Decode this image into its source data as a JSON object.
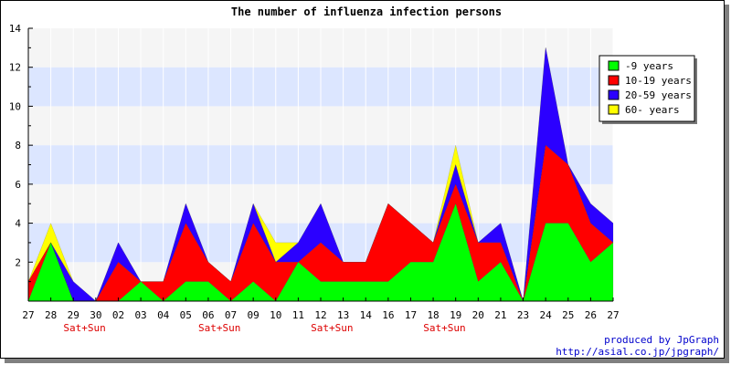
{
  "chart_data": {
    "type": "area",
    "stacked": true,
    "title": "The number of influenza infection persons",
    "xlabel": "",
    "ylabel": "",
    "ylim": [
      0,
      14
    ],
    "yticks": [
      2,
      4,
      6,
      8,
      10,
      12,
      14
    ],
    "categories": [
      "27",
      "28",
      "29",
      "30",
      "02",
      "03",
      "04",
      "05",
      "06",
      "07",
      "09",
      "10",
      "11",
      "12",
      "13",
      "14",
      "16",
      "17",
      "18",
      "19",
      "20",
      "21",
      "23",
      "24",
      "25",
      "26",
      "27"
    ],
    "weekend_labels": [
      {
        "after": "29",
        "label": "Sat+Sun"
      },
      {
        "after": "06",
        "label": "Sat+Sun"
      },
      {
        "after": "12",
        "label": "Sat+Sun"
      },
      {
        "after": "18",
        "label": "Sat+Sun"
      }
    ],
    "legend_position": "top-right",
    "grid": true,
    "series": [
      {
        "name": "-9 years",
        "color": "#00ff00",
        "values": [
          0,
          3,
          0,
          0,
          0,
          1,
          0,
          1,
          1,
          0,
          1,
          0,
          2,
          1,
          1,
          1,
          1,
          2,
          2,
          5,
          1,
          2,
          0,
          4,
          4,
          2,
          3
        ]
      },
      {
        "name": "10-19 years",
        "color": "#ff0000",
        "values": [
          1,
          0,
          0,
          0,
          2,
          0,
          1,
          3,
          1,
          1,
          3,
          2,
          0,
          2,
          1,
          1,
          4,
          2,
          1,
          1,
          2,
          1,
          0,
          4,
          3,
          2,
          0
        ]
      },
      {
        "name": "20-59 years",
        "color": "#2b00ff",
        "values": [
          0,
          0,
          1,
          0,
          1,
          0,
          0,
          1,
          0,
          0,
          1,
          0,
          1,
          2,
          0,
          0,
          0,
          0,
          0,
          1,
          0,
          1,
          0,
          5,
          0,
          1,
          1
        ]
      },
      {
        "name": "60- years",
        "color": "#ffff00",
        "values": [
          0,
          1,
          0,
          0,
          0,
          0,
          0,
          0,
          0,
          0,
          0,
          1,
          0,
          0,
          0,
          0,
          0,
          0,
          0,
          1,
          0,
          0,
          0,
          0,
          0,
          0,
          0
        ]
      }
    ]
  },
  "footer": {
    "credit": "produced by JpGraph",
    "url": "http://asial.co.jp/jpgraph/"
  },
  "colors": {
    "band_blue": "#dce6ff",
    "band_gray": "#f5f5f5",
    "weekend_text": "#dd0000",
    "footer_text": "#0000cc"
  }
}
